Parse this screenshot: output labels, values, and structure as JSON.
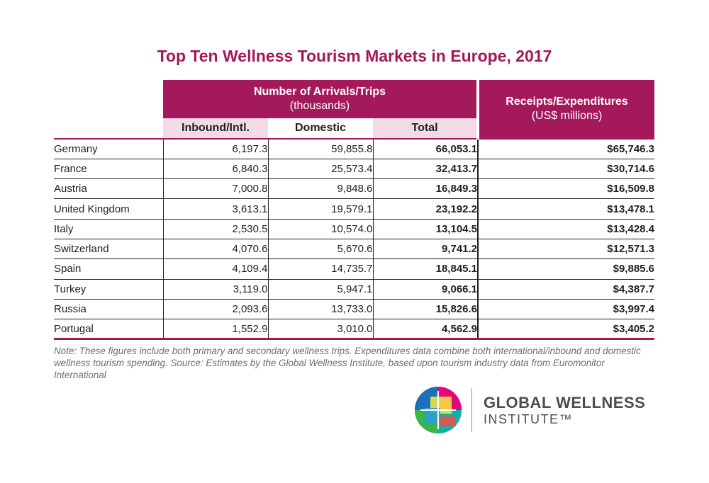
{
  "title": "Top Ten Wellness Tourism Markets in Europe, 2017",
  "header": {
    "arrivals_title": "Number of Arrivals/Trips",
    "arrivals_sub": "(thousands)",
    "receipts_title": "Receipts/Expenditures",
    "receipts_sub": "(US$ millions)",
    "col_inbound": "Inbound/Intl.",
    "col_domestic": "Domestic",
    "col_total": "Total"
  },
  "rows": [
    {
      "country": "Germany",
      "inbound": "6,197.3",
      "domestic": "59,855.8",
      "total": "66,053.1",
      "receipts": "$65,746.3"
    },
    {
      "country": "France",
      "inbound": "6,840.3",
      "domestic": "25,573.4",
      "total": "32,413.7",
      "receipts": "$30,714.6"
    },
    {
      "country": "Austria",
      "inbound": "7,000.8",
      "domestic": "9,848.6",
      "total": "16,849.3",
      "receipts": "$16,509.8"
    },
    {
      "country": "United Kingdom",
      "inbound": "3,613.1",
      "domestic": "19,579.1",
      "total": "23,192.2",
      "receipts": "$13,478.1"
    },
    {
      "country": "Italy",
      "inbound": "2,530.5",
      "domestic": "10,574.0",
      "total": "13,104.5",
      "receipts": "$13,428.4"
    },
    {
      "country": "Switzerland",
      "inbound": "4,070.6",
      "domestic": "5,670.6",
      "total": "9,741.2",
      "receipts": "$12,571.3"
    },
    {
      "country": "Spain",
      "inbound": "4,109.4",
      "domestic": "14,735.7",
      "total": "18,845.1",
      "receipts": "$9,885.6"
    },
    {
      "country": "Turkey",
      "inbound": "3,119.0",
      "domestic": "5,947.1",
      "total": "9,066.1",
      "receipts": "$4,387.7"
    },
    {
      "country": "Russia",
      "inbound": "2,093.6",
      "domestic": "13,733.0",
      "total": "15,826.6",
      "receipts": "$3,997.4"
    },
    {
      "country": "Portugal",
      "inbound": "1,552.9",
      "domestic": "3,010.0",
      "total": "4,562.9",
      "receipts": "$3,405.2"
    }
  ],
  "note": "Note: These figures include both primary and secondary wellness trips. Expenditures data combine both international/inbound and domestic wellness tourism spending. Source: Estimates by the Global Wellness Institute, based upon tourism industry data from Euromonitor International",
  "logo": {
    "line1": "GLOBAL WELLNESS",
    "line2": "INSTITUTE™",
    "icon": "gwi-logo-mark-icon"
  },
  "colors": {
    "accent": "#a3195b",
    "accent_light": "#f3dbe6",
    "note_text": "#6d6e71"
  }
}
